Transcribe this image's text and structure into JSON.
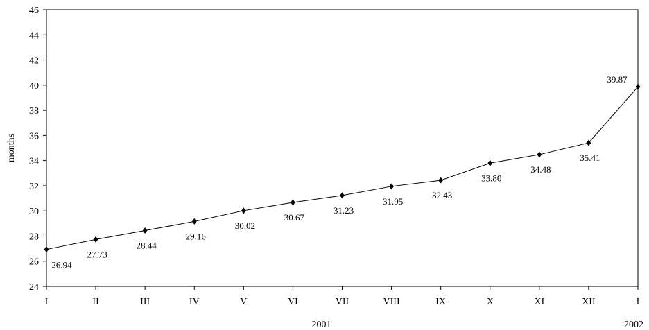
{
  "chart_data": {
    "type": "line",
    "ylabel": "months",
    "ylim": [
      24,
      46
    ],
    "yticks": [
      "24",
      "26",
      "28",
      "30",
      "32",
      "34",
      "36",
      "38",
      "40",
      "42",
      "44",
      "46"
    ],
    "categories": [
      "I",
      "II",
      "III",
      "IV",
      "V",
      "VI",
      "VII",
      "VIII",
      "IX",
      "X",
      "XI",
      "XII",
      "I"
    ],
    "year_labels": [
      "2001",
      "2002"
    ],
    "values": [
      26.94,
      27.73,
      28.44,
      29.16,
      30.02,
      30.67,
      31.23,
      31.95,
      32.43,
      33.8,
      34.48,
      35.41,
      39.87
    ],
    "data_labels": [
      "26.94",
      "27.73",
      "28.44",
      "29.16",
      "30.02",
      "30.67",
      "31.23",
      "31.95",
      "32.43",
      "33.80",
      "34.48",
      "35.41",
      "39.87"
    ],
    "marker": "diamond",
    "grid": false,
    "colors": {
      "line": "#000000",
      "marker": "#000000"
    }
  }
}
